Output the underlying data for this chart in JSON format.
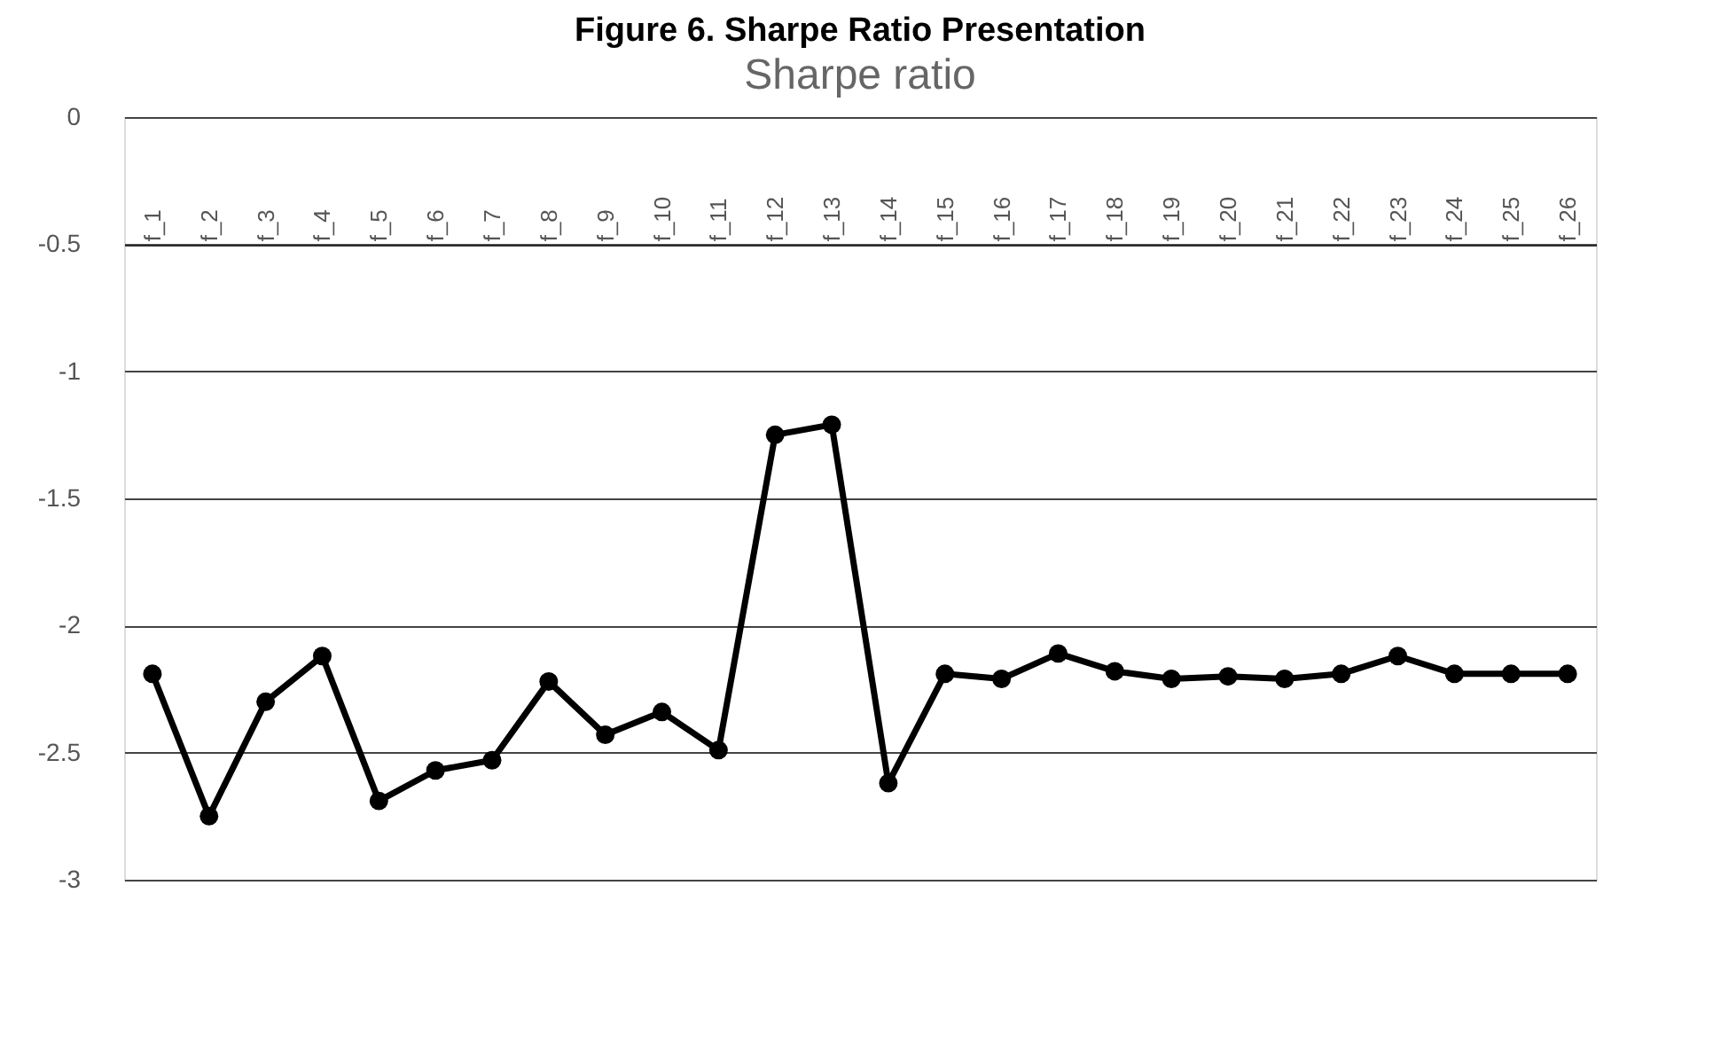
{
  "chart_data": {
    "type": "line",
    "title": "Figure 6. Sharpe Ratio Presentation",
    "subtitle": "Sharpe ratio",
    "categories": [
      "f_1",
      "f_2",
      "f_3",
      "f_4",
      "f_5",
      "f_6",
      "f_7",
      "f_8",
      "f_9",
      "f_10",
      "f_11",
      "f_12",
      "f_13",
      "f_14",
      "f_15",
      "f_16",
      "f_17",
      "f_18",
      "f_19",
      "f_20",
      "f_21",
      "f_22",
      "f_23",
      "f_24",
      "f_25",
      "f_26"
    ],
    "series": [
      {
        "color": "#000000",
        "values": [
          -2.19,
          -2.75,
          -2.3,
          -2.12,
          -2.69,
          -2.57,
          -2.53,
          -2.22,
          -2.43,
          -2.34,
          -2.49,
          -1.25,
          -1.21,
          -2.62,
          -2.19,
          -2.21,
          -2.11,
          -2.18,
          -2.21,
          -2.2,
          -2.21,
          -2.19,
          -2.12,
          -2.19,
          -2.19,
          -2.19
        ]
      }
    ],
    "ylim": [
      -3,
      0
    ],
    "yticks": [
      -3,
      -2.5,
      -2,
      -1.5,
      -1,
      -0.5,
      0
    ],
    "grid": "y",
    "marker": "circle",
    "line_style": "solid"
  }
}
